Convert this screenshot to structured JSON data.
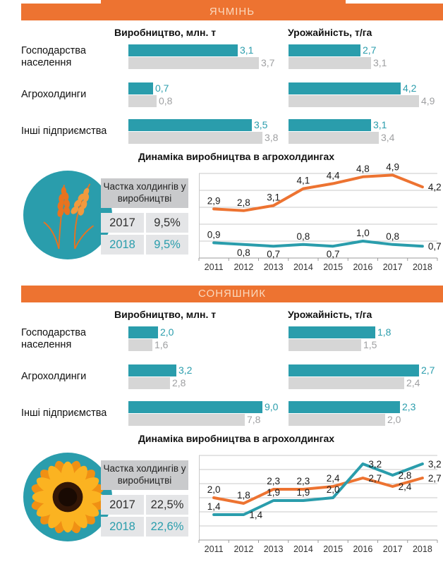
{
  "colors": {
    "orange": "#ED7331",
    "teal": "#2A9DAC",
    "gray_bar": "#D6D6D6",
    "gray_value_text": "#9FA0A2",
    "table_header_bg": "#C9CACC",
    "table_row_bg": "#E4E5E7",
    "header_text": "#FAD9BE",
    "dark_text": "#111111"
  },
  "sections": [
    {
      "title": "ЯЧМІНЬ",
      "col_headers": [
        "Виробництво, млн. т",
        "Урожайність, т/га"
      ],
      "dynamics_title": "Динаміка виробництва в агрохолдингах",
      "icon": "wheat-icon",
      "share_table": {
        "header": "Частка холдингів у виробництві",
        "rows": [
          {
            "year": "2017",
            "value": "9,5%",
            "emphasis": "dark"
          },
          {
            "year": "2018",
            "value": "9,5%",
            "emphasis": "teal"
          }
        ]
      },
      "charts": {
        "production": 0,
        "yield": 1,
        "dynamics": 2
      }
    },
    {
      "title": "СОНЯШНИК",
      "col_headers": [
        "Виробництво, млн. т",
        "Урожайність, т/га"
      ],
      "dynamics_title": "Динаміка виробництва в агрохолдингах",
      "icon": "sunflower-icon",
      "share_table": {
        "header": "Частка холдингів у виробництві",
        "rows": [
          {
            "year": "2017",
            "value": "22,5%",
            "emphasis": "dark"
          },
          {
            "year": "2018",
            "value": "22,6%",
            "emphasis": "teal"
          }
        ]
      },
      "charts": {
        "production": 3,
        "yield": 4,
        "dynamics": 5
      }
    }
  ],
  "chart_data": [
    {
      "id": "barley-production",
      "type": "bar",
      "title": "Виробництво, млн. т",
      "categories": [
        "Господарства населення",
        "Агрохолдинги",
        "Інші підприємства"
      ],
      "series": [
        {
          "name": "teal",
          "color": "#2A9DAC",
          "values": [
            3.1,
            0.7,
            3.5
          ]
        },
        {
          "name": "gray",
          "color": "#D6D6D6",
          "values": [
            3.7,
            0.8,
            3.8
          ]
        }
      ],
      "xlim": [
        0,
        3.8
      ],
      "grid": false,
      "legend": "none"
    },
    {
      "id": "barley-yield",
      "type": "bar",
      "title": "Урожайність, т/га",
      "categories": [
        "Господарства населення",
        "Агрохолдинги",
        "Інші підприємства"
      ],
      "series": [
        {
          "name": "teal",
          "color": "#2A9DAC",
          "values": [
            2.7,
            4.2,
            3.1
          ]
        },
        {
          "name": "gray",
          "color": "#D6D6D6",
          "values": [
            3.1,
            4.9,
            3.4
          ]
        }
      ],
      "xlim": [
        0,
        4.9
      ],
      "grid": false,
      "legend": "none"
    },
    {
      "id": "barley-dynamics",
      "type": "line",
      "title": "Динаміка виробництва в агрохолдингах",
      "x": [
        2011,
        2012,
        2013,
        2014,
        2015,
        2016,
        2017,
        2018
      ],
      "series": [
        {
          "name": "orange",
          "color": "#ED7331",
          "values": [
            2.9,
            2.8,
            3.1,
            4.1,
            4.4,
            4.8,
            4.9,
            4.2
          ],
          "label_pos": [
            "above",
            "above",
            "above",
            "above",
            "above",
            "above",
            "above",
            "right"
          ]
        },
        {
          "name": "teal",
          "color": "#2A9DAC",
          "values": [
            0.9,
            0.8,
            0.7,
            0.8,
            0.7,
            1.0,
            0.8,
            0.7
          ],
          "label_pos": [
            "above",
            "below",
            "below",
            "above",
            "below",
            "above",
            "above",
            "right"
          ]
        }
      ],
      "ylim": [
        0,
        5
      ],
      "ygrid_step": 1,
      "grid": true,
      "legend": "none"
    },
    {
      "id": "sunflower-production",
      "type": "bar",
      "title": "Виробництво, млн. т",
      "categories": [
        "Господарства населення",
        "Агрохолдинги",
        "Інші підприємства"
      ],
      "series": [
        {
          "name": "teal",
          "color": "#2A9DAC",
          "values": [
            2.0,
            3.2,
            9.0
          ]
        },
        {
          "name": "gray",
          "color": "#D6D6D6",
          "values": [
            1.6,
            2.8,
            7.8
          ]
        }
      ],
      "xlim": [
        0,
        9.0
      ],
      "grid": false,
      "legend": "none"
    },
    {
      "id": "sunflower-yield",
      "type": "bar",
      "title": "Урожайність, т/га",
      "categories": [
        "Господарства населення",
        "Агрохолдинги",
        "Інші підприємства"
      ],
      "series": [
        {
          "name": "teal",
          "color": "#2A9DAC",
          "values": [
            1.8,
            2.7,
            2.3
          ]
        },
        {
          "name": "gray",
          "color": "#D6D6D6",
          "values": [
            1.5,
            2.4,
            2.0
          ]
        }
      ],
      "xlim": [
        0,
        2.7
      ],
      "grid": false,
      "legend": "none"
    },
    {
      "id": "sunflower-dynamics",
      "type": "line",
      "title": "Динаміка виробництва в агрохолдингах",
      "x": [
        2011,
        2012,
        2013,
        2014,
        2015,
        2016,
        2017,
        2018
      ],
      "series": [
        {
          "name": "orange",
          "color": "#ED7331",
          "values": [
            2.0,
            1.8,
            2.3,
            2.3,
            2.4,
            2.7,
            2.4,
            2.7
          ],
          "label_pos": [
            "above",
            "above",
            "above",
            "above",
            "above",
            "right",
            "right",
            "right"
          ]
        },
        {
          "name": "teal",
          "color": "#2A9DAC",
          "values": [
            1.4,
            1.4,
            1.9,
            1.9,
            2.0,
            3.2,
            2.8,
            3.2
          ],
          "label_pos": [
            "above",
            "right",
            "above",
            "above",
            "above",
            "right",
            "right",
            "right"
          ]
        }
      ],
      "ylim": [
        0.5,
        3.5
      ],
      "ygrid_step": 0.5,
      "grid": true,
      "legend": "none"
    }
  ]
}
